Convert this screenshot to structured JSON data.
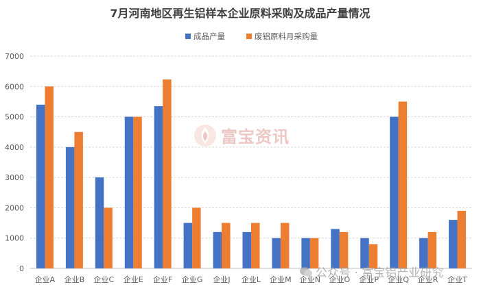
{
  "chart_data": {
    "type": "bar",
    "title": "7月河南地区再生铝样本企业原料采购及成品产量情况",
    "xlabel": "",
    "ylabel": "",
    "ylim": [
      0,
      7000
    ],
    "yticks": [
      "0",
      "1000",
      "2000",
      "3000",
      "4000",
      "5000",
      "6000",
      "7000"
    ],
    "grid": true,
    "legend_position": "top",
    "categories": [
      "企业A",
      "企业B",
      "企业C",
      "企业E",
      "企业F",
      "企业G",
      "企业J",
      "企业L",
      "企业M",
      "企业N",
      "企业O",
      "企业P",
      "企业Q",
      "企业R",
      "企业T"
    ],
    "series": [
      {
        "name": "成品产量",
        "color": "#4472c4",
        "values": [
          5400,
          4000,
          3000,
          5000,
          5350,
          1500,
          1200,
          1200,
          1000,
          1000,
          1300,
          1000,
          5000,
          1000,
          1600
        ]
      },
      {
        "name": "废铝原料月采购量",
        "color": "#ed7d31",
        "values": [
          6000,
          4500,
          2000,
          5000,
          6230,
          2000,
          1500,
          1500,
          1500,
          1000,
          1200,
          800,
          5500,
          1200,
          1900
        ]
      }
    ]
  },
  "watermarks": {
    "center": "富宝资讯",
    "bottom": "公众号 · 富宝铝产业研究"
  }
}
